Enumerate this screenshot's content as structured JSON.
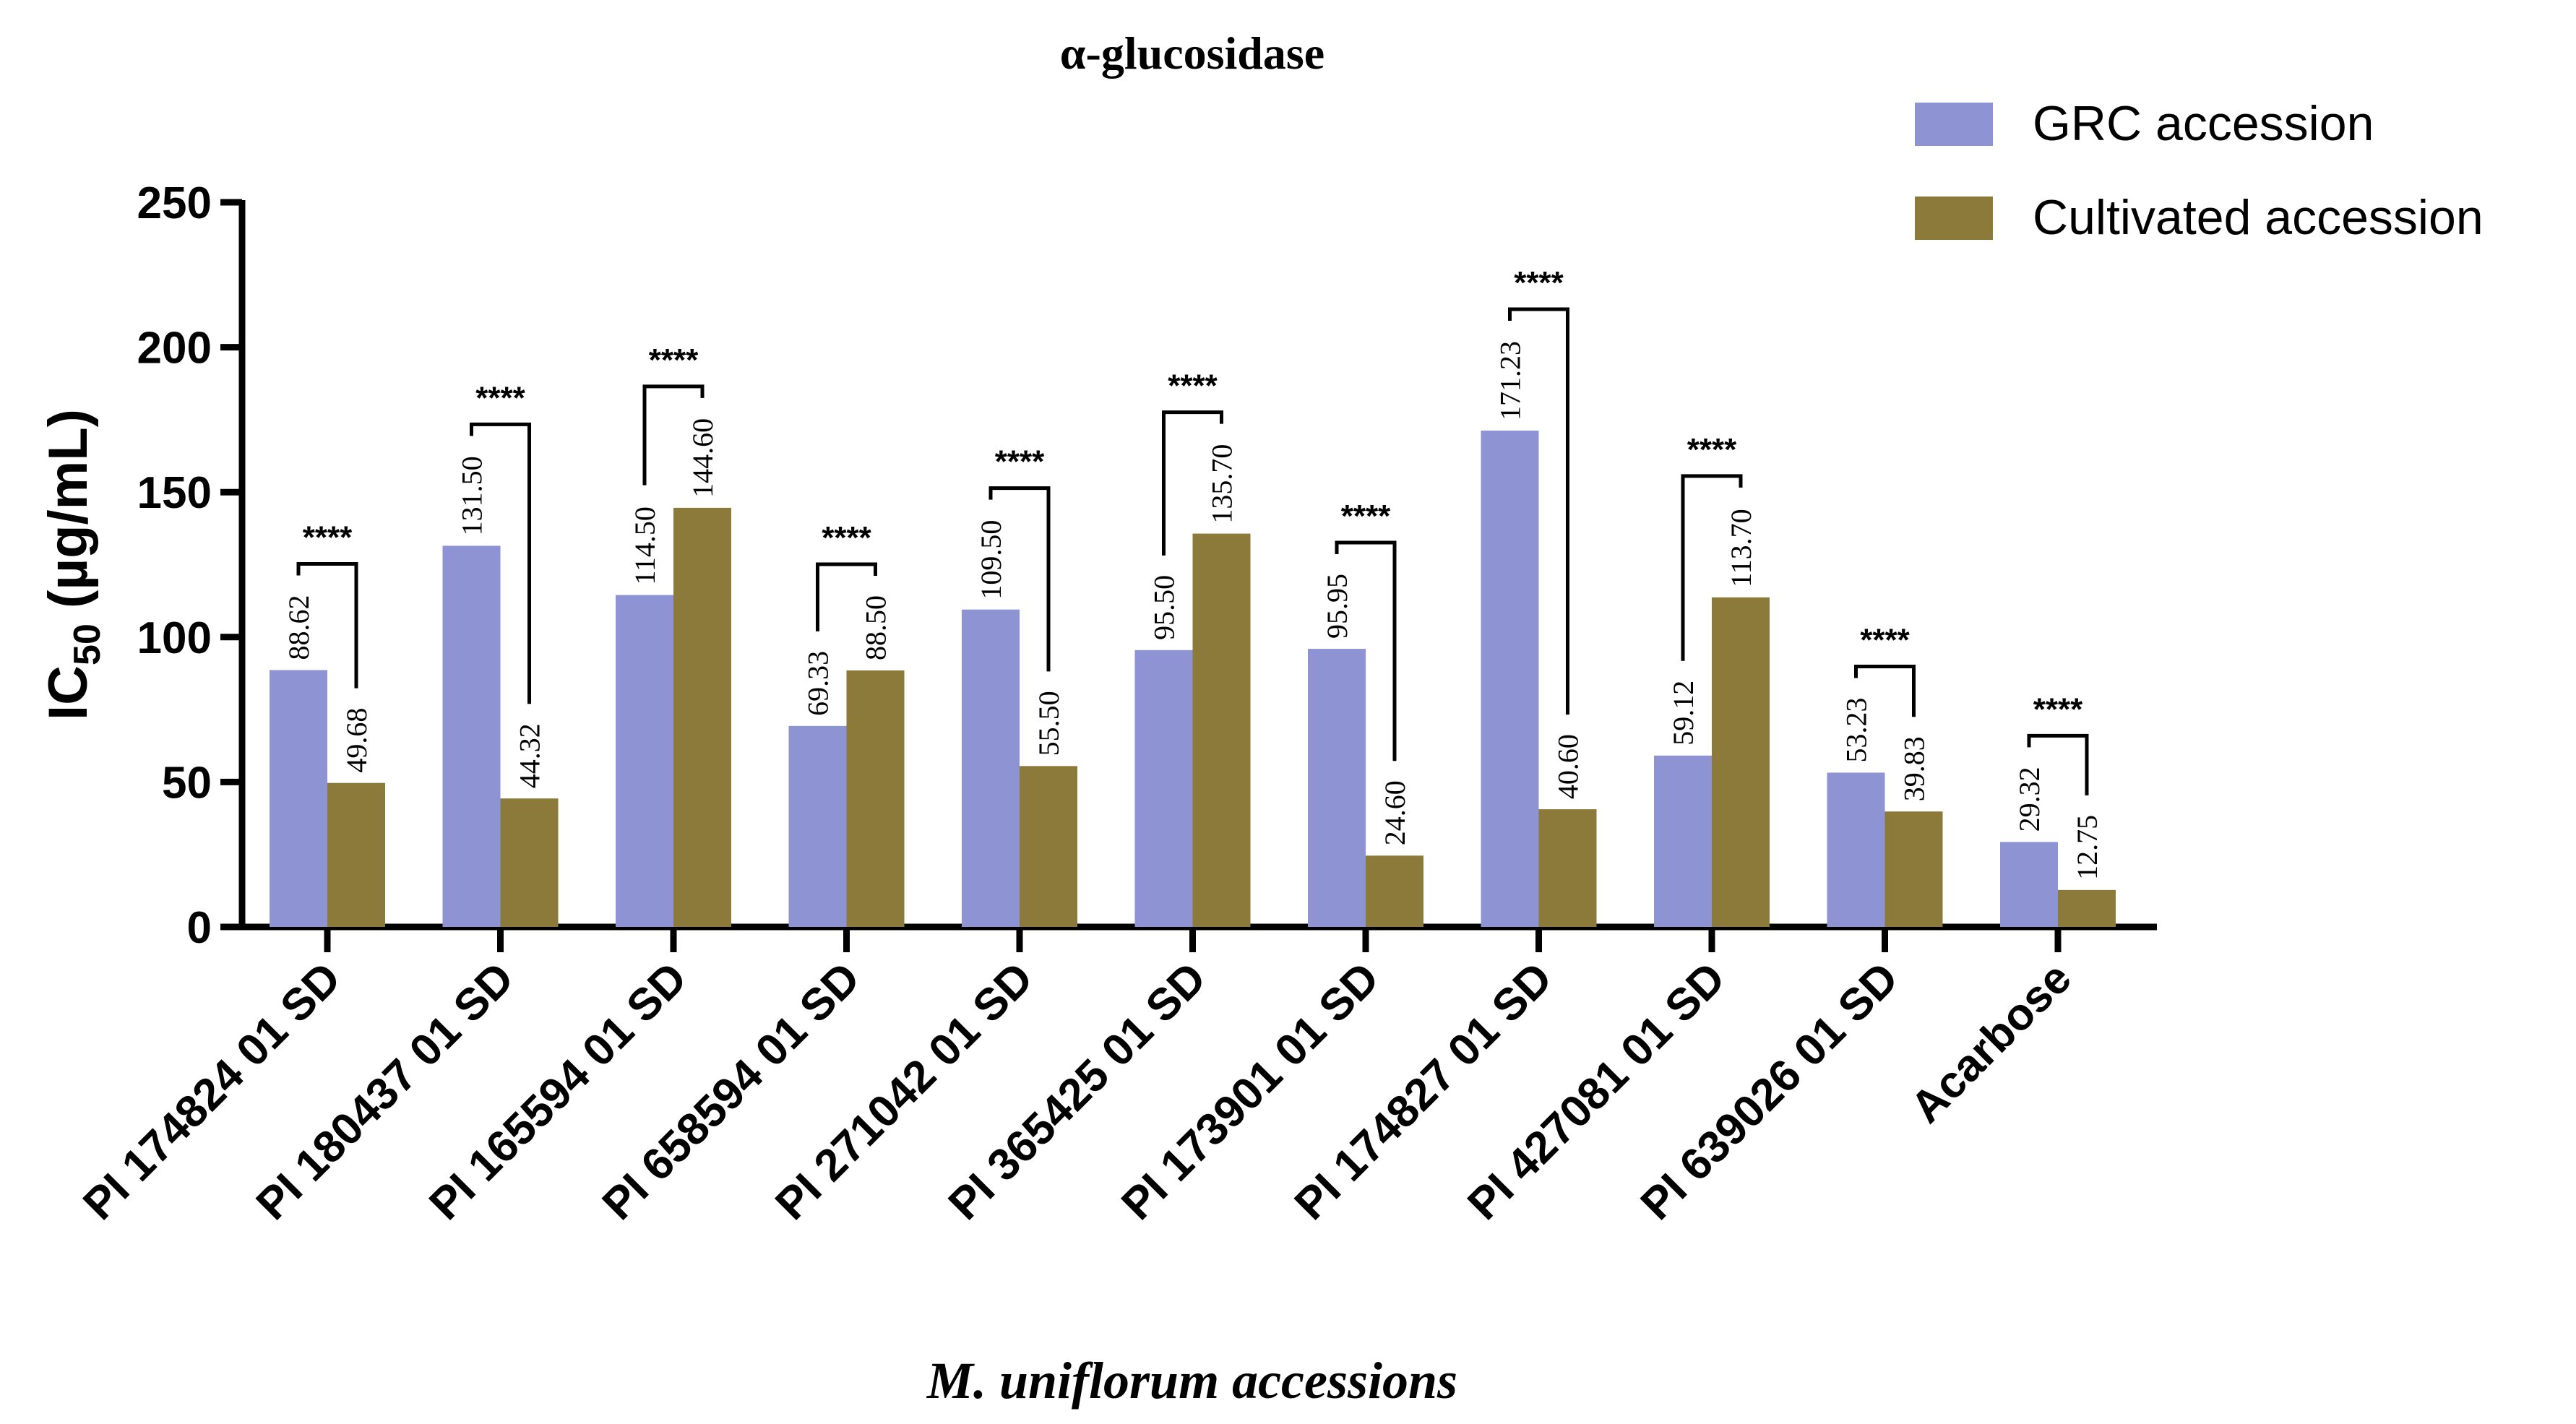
{
  "chart_data": {
    "type": "bar",
    "title": "α-glucosidase",
    "xlabel": "M. uniflorum accessions",
    "ylabel_main": "IC",
    "ylabel_sub": "50",
    "ylabel_unit": " (µg/mL)",
    "ylim": [
      0,
      250
    ],
    "yticks": [
      0,
      50,
      100,
      150,
      200,
      250
    ],
    "ytick_labels": [
      "0",
      "50",
      "100",
      "150",
      "200",
      "250"
    ],
    "categories": [
      "PI 174824 01 SD",
      "PI 180437 01 SD",
      "PI 165594 01 SD",
      "PI 658594 01 SD",
      "PI 271042 01 SD",
      "PI 365425 01 SD",
      "PI 173901 01 SD",
      "PI 174827 01 SD",
      "PI 427081 01 SD",
      "PI 639026 01 SD",
      "Acarbose"
    ],
    "series": [
      {
        "name": "GRC accession",
        "color": "#8e93d4",
        "values": [
          88.62,
          131.5,
          114.5,
          69.33,
          109.5,
          95.5,
          95.95,
          171.23,
          59.12,
          53.23,
          29.32
        ],
        "labels": [
          "88.62",
          "131.50",
          "114.50",
          "69.33",
          "109.50",
          "95.50",
          "95.95",
          "171.23",
          "59.12",
          "53.23",
          "29.32"
        ]
      },
      {
        "name": "Cultivated accession",
        "color": "#8b7a3a",
        "values": [
          49.68,
          44.32,
          144.6,
          88.5,
          55.5,
          135.7,
          24.6,
          40.6,
          113.7,
          39.83,
          12.75
        ],
        "labels": [
          "49.68",
          "44.32",
          "144.60",
          "88.50",
          "55.50",
          "135.70",
          "24.60",
          "40.60",
          "113.70",
          "39.83",
          "12.75"
        ]
      }
    ],
    "significance": [
      "****",
      "****",
      "****",
      "****",
      "****",
      "****",
      "****",
      "****",
      "****",
      "****",
      "****"
    ],
    "legend_position": "top-right",
    "grid": false
  }
}
